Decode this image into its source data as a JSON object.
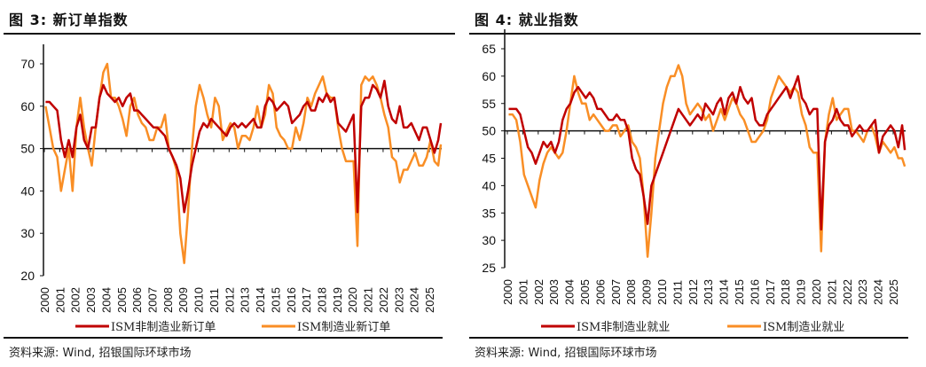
{
  "source": "资料来源: Wind, 招银国际环球市场",
  "colors": {
    "red": "#C00000",
    "orange": "#F98E25"
  },
  "chart_data": [
    {
      "type": "line",
      "title": "图 3: 新订单指数",
      "ylim": [
        20,
        70
      ],
      "yticks": [
        20,
        30,
        40,
        50,
        60,
        70
      ],
      "xticks": [
        "2000",
        "2001",
        "2002",
        "2003",
        "2004",
        "2005",
        "2006",
        "2007",
        "2008",
        "2009",
        "2010",
        "2011",
        "2012",
        "2013",
        "2014",
        "2015",
        "2016",
        "2017",
        "2018",
        "2019",
        "2020",
        "2021",
        "2022",
        "2023",
        "2024",
        "2025"
      ],
      "reference_line": 50,
      "grid": false,
      "legend": "bottom",
      "x": [
        "2000-02",
        "2000-05",
        "2000-08",
        "2000-11",
        "2001-02",
        "2001-05",
        "2001-08",
        "2001-11",
        "2002-02",
        "2002-05",
        "2002-08",
        "2002-11",
        "2003-02",
        "2003-05",
        "2003-08",
        "2003-11",
        "2004-02",
        "2004-05",
        "2004-08",
        "2004-11",
        "2005-02",
        "2005-05",
        "2005-08",
        "2005-11",
        "2006-02",
        "2006-05",
        "2006-08",
        "2006-11",
        "2007-02",
        "2007-05",
        "2007-08",
        "2007-11",
        "2008-02",
        "2008-05",
        "2008-08",
        "2008-11",
        "2009-02",
        "2009-05",
        "2009-08",
        "2009-11",
        "2010-02",
        "2010-05",
        "2010-08",
        "2010-11",
        "2011-02",
        "2011-05",
        "2011-08",
        "2011-11",
        "2012-02",
        "2012-05",
        "2012-08",
        "2012-11",
        "2013-02",
        "2013-05",
        "2013-08",
        "2013-11",
        "2014-02",
        "2014-05",
        "2014-08",
        "2014-11",
        "2015-02",
        "2015-05",
        "2015-08",
        "2015-11",
        "2016-02",
        "2016-05",
        "2016-08",
        "2016-11",
        "2017-02",
        "2017-05",
        "2017-08",
        "2017-11",
        "2018-02",
        "2018-05",
        "2018-08",
        "2018-11",
        "2019-02",
        "2019-05",
        "2019-08",
        "2019-11",
        "2020-02",
        "2020-05",
        "2020-08",
        "2020-11",
        "2021-02",
        "2021-05",
        "2021-08",
        "2021-11",
        "2022-02",
        "2022-05",
        "2022-08",
        "2022-11",
        "2023-02",
        "2023-05",
        "2023-08",
        "2023-11",
        "2024-02",
        "2024-05",
        "2024-08",
        "2024-11",
        "2025-02",
        "2025-05",
        "2025-08",
        "2025-10"
      ],
      "series": [
        {
          "name": "ISM非制造业新订单",
          "color": "#C00000",
          "values": [
            61,
            61,
            60,
            59,
            52,
            48,
            52,
            48,
            55,
            58,
            52,
            50,
            55,
            55,
            62,
            65,
            63,
            62,
            61,
            62,
            60,
            62,
            63,
            59,
            59,
            58,
            57,
            56,
            55,
            55,
            54,
            53,
            50,
            48,
            46,
            43,
            35,
            40,
            46,
            50,
            54,
            56,
            55,
            57,
            56,
            55,
            54,
            53,
            55,
            56,
            55,
            56,
            55,
            56,
            57,
            55,
            55,
            60,
            62,
            61,
            59,
            60,
            61,
            60,
            56,
            57,
            58,
            60,
            61,
            59,
            59,
            62,
            61,
            63,
            61,
            62,
            56,
            55,
            54,
            56,
            58,
            35,
            60,
            62,
            62,
            65,
            64,
            62,
            66,
            60,
            57,
            56,
            60,
            55,
            55,
            56,
            54,
            52,
            55,
            55,
            52,
            49,
            52,
            56
          ]
        },
        {
          "name": "ISM制造业新订单",
          "color": "#F98E25",
          "values": [
            60,
            55,
            50,
            48,
            40,
            45,
            50,
            40,
            55,
            62,
            55,
            50,
            46,
            55,
            62,
            68,
            70,
            62,
            62,
            60,
            57,
            53,
            60,
            62,
            58,
            56,
            55,
            52,
            52,
            55,
            55,
            58,
            50,
            48,
            45,
            30,
            23,
            35,
            50,
            60,
            65,
            62,
            58,
            55,
            62,
            60,
            52,
            54,
            56,
            55,
            50,
            53,
            53,
            52,
            55,
            60,
            55,
            58,
            65,
            63,
            55,
            53,
            52,
            50,
            50,
            55,
            52,
            56,
            62,
            60,
            63,
            65,
            67,
            63,
            62,
            62,
            55,
            50,
            47,
            47,
            47,
            27,
            65,
            67,
            66,
            67,
            65,
            62,
            58,
            55,
            48,
            47,
            42,
            45,
            45,
            47,
            49,
            46,
            46,
            48,
            52,
            47,
            46,
            51
          ]
        }
      ]
    },
    {
      "type": "line",
      "title": "图 4: 就业指数",
      "ylim": [
        25,
        65
      ],
      "yticks": [
        25,
        30,
        35,
        40,
        45,
        50,
        55,
        60,
        65
      ],
      "xticks": [
        "2000",
        "2001",
        "2002",
        "2003",
        "2004",
        "2005",
        "2006",
        "2007",
        "2008",
        "2009",
        "2010",
        "2011",
        "2012",
        "2013",
        "2014",
        "2015",
        "2016",
        "2017",
        "2018",
        "2019",
        "2020",
        "2021",
        "2022",
        "2023",
        "2024",
        "2025"
      ],
      "reference_line": 50,
      "grid": false,
      "legend": "bottom",
      "x": [
        "2000-02",
        "2000-05",
        "2000-08",
        "2000-11",
        "2001-02",
        "2001-05",
        "2001-08",
        "2001-11",
        "2002-02",
        "2002-05",
        "2002-08",
        "2002-11",
        "2003-02",
        "2003-05",
        "2003-08",
        "2003-11",
        "2004-02",
        "2004-05",
        "2004-08",
        "2004-11",
        "2005-02",
        "2005-05",
        "2005-08",
        "2005-11",
        "2006-02",
        "2006-05",
        "2006-08",
        "2006-11",
        "2007-02",
        "2007-05",
        "2007-08",
        "2007-11",
        "2008-02",
        "2008-05",
        "2008-08",
        "2008-11",
        "2009-02",
        "2009-05",
        "2009-08",
        "2009-11",
        "2010-02",
        "2010-05",
        "2010-08",
        "2010-11",
        "2011-02",
        "2011-05",
        "2011-08",
        "2011-11",
        "2012-02",
        "2012-05",
        "2012-08",
        "2012-11",
        "2013-02",
        "2013-05",
        "2013-08",
        "2013-11",
        "2014-02",
        "2014-05",
        "2014-08",
        "2014-11",
        "2015-02",
        "2015-05",
        "2015-08",
        "2015-11",
        "2016-02",
        "2016-05",
        "2016-08",
        "2016-11",
        "2017-02",
        "2017-05",
        "2017-08",
        "2017-11",
        "2018-02",
        "2018-05",
        "2018-08",
        "2018-11",
        "2019-02",
        "2019-05",
        "2019-08",
        "2019-11",
        "2020-02",
        "2020-05",
        "2020-08",
        "2020-11",
        "2021-02",
        "2021-05",
        "2021-08",
        "2021-11",
        "2022-02",
        "2022-05",
        "2022-08",
        "2022-11",
        "2023-02",
        "2023-05",
        "2023-08",
        "2023-11",
        "2024-02",
        "2024-05",
        "2024-08",
        "2024-11",
        "2025-02",
        "2025-05",
        "2025-08",
        "2025-10"
      ],
      "series": [
        {
          "name": "ISM非制造业就业",
          "color": "#C00000",
          "values": [
            54,
            54,
            54,
            53,
            50,
            47,
            46,
            44,
            46,
            48,
            47,
            48,
            46,
            48,
            52,
            54,
            55,
            57,
            58,
            57,
            56,
            57,
            56,
            54,
            54,
            53,
            52,
            52,
            53,
            52,
            52,
            50,
            45,
            43,
            42,
            38,
            33,
            40,
            42,
            44,
            46,
            48,
            50,
            52,
            54,
            53,
            52,
            51,
            52,
            53,
            52,
            55,
            54,
            53,
            55,
            56,
            53,
            56,
            57,
            55,
            58,
            56,
            55,
            56,
            52,
            51,
            51,
            53,
            54,
            55,
            56,
            57,
            58,
            56,
            58,
            60,
            56,
            55,
            53,
            54,
            54,
            32,
            48,
            51,
            52,
            54,
            52,
            51,
            51,
            49,
            50,
            51,
            50,
            50,
            51,
            52,
            46,
            49,
            50,
            51,
            50,
            47,
            51,
            46.5
          ]
        },
        {
          "name": "ISM制造业就业",
          "color": "#F98E25",
          "values": [
            53,
            53,
            52,
            48,
            42,
            40,
            38,
            36,
            41,
            44,
            46,
            47,
            46,
            45,
            46,
            50,
            55,
            60,
            57,
            55,
            55,
            52,
            53,
            52,
            51,
            50,
            50,
            51,
            51,
            49,
            50,
            51,
            48,
            47,
            45,
            38,
            27,
            35,
            45,
            50,
            55,
            58,
            60,
            60,
            62,
            60,
            55,
            53,
            54,
            55,
            54,
            52,
            53,
            50,
            52,
            54,
            52,
            54,
            56,
            55,
            53,
            52,
            50,
            48,
            48,
            49,
            50,
            52,
            56,
            58,
            60,
            59,
            58,
            57,
            58,
            57,
            53,
            51,
            47,
            46,
            46,
            28,
            48,
            53,
            56,
            52,
            53,
            54,
            54,
            50,
            50,
            49,
            48,
            50,
            51,
            49,
            46,
            48,
            47,
            46,
            47,
            45,
            45,
            43.5
          ]
        }
      ]
    }
  ]
}
